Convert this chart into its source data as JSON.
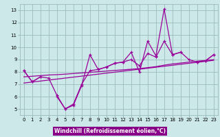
{
  "x": [
    0,
    1,
    2,
    3,
    4,
    5,
    6,
    7,
    8,
    9,
    10,
    11,
    12,
    13,
    14,
    15,
    16,
    17,
    18,
    19,
    20,
    21,
    22,
    23
  ],
  "line1": [
    8.1,
    7.2,
    7.6,
    null,
    6.0,
    5.0,
    5.3,
    6.9,
    9.4,
    8.2,
    8.4,
    8.7,
    8.8,
    9.6,
    8.0,
    10.5,
    9.3,
    13.1,
    9.4,
    9.6,
    null,
    8.8,
    8.9,
    9.4
  ],
  "line2": [
    8.1,
    7.2,
    7.6,
    7.5,
    6.1,
    5.0,
    5.4,
    7.0,
    8.1,
    8.2,
    8.4,
    8.7,
    8.8,
    9.0,
    8.5,
    9.5,
    9.2,
    10.5,
    9.4,
    9.6,
    9.0,
    8.8,
    8.9,
    9.4
  ],
  "trend1": [
    7.6,
    7.65,
    7.7,
    7.75,
    7.78,
    7.82,
    7.87,
    7.92,
    7.97,
    8.02,
    8.07,
    8.12,
    8.17,
    8.22,
    8.27,
    8.35,
    8.43,
    8.55,
    8.65,
    8.72,
    8.8,
    8.87,
    8.93,
    9.0
  ],
  "trend2": [
    7.1,
    7.18,
    7.26,
    7.34,
    7.42,
    7.5,
    7.58,
    7.66,
    7.74,
    7.82,
    7.9,
    7.98,
    8.06,
    8.14,
    8.22,
    8.3,
    8.38,
    8.46,
    8.54,
    8.62,
    8.7,
    8.78,
    8.86,
    8.94
  ],
  "line_color": "#990099",
  "bg_color": "#cce8e8",
  "grid_color": "#99bbbb",
  "xlabel": "Windchill (Refroidissement éolien,°C)",
  "ylim": [
    4.5,
    13.5
  ],
  "xlim": [
    -0.5,
    23.5
  ],
  "yticks": [
    5,
    6,
    7,
    8,
    9,
    10,
    11,
    12,
    13
  ],
  "xticks": [
    0,
    1,
    2,
    3,
    4,
    5,
    6,
    7,
    8,
    9,
    10,
    11,
    12,
    13,
    14,
    15,
    16,
    17,
    18,
    19,
    20,
    21,
    22,
    23
  ],
  "xlabel_bg": "#880088",
  "xlabel_fg": "#ffffff",
  "tick_fontsize": 5,
  "xlabel_fontsize": 5.5
}
